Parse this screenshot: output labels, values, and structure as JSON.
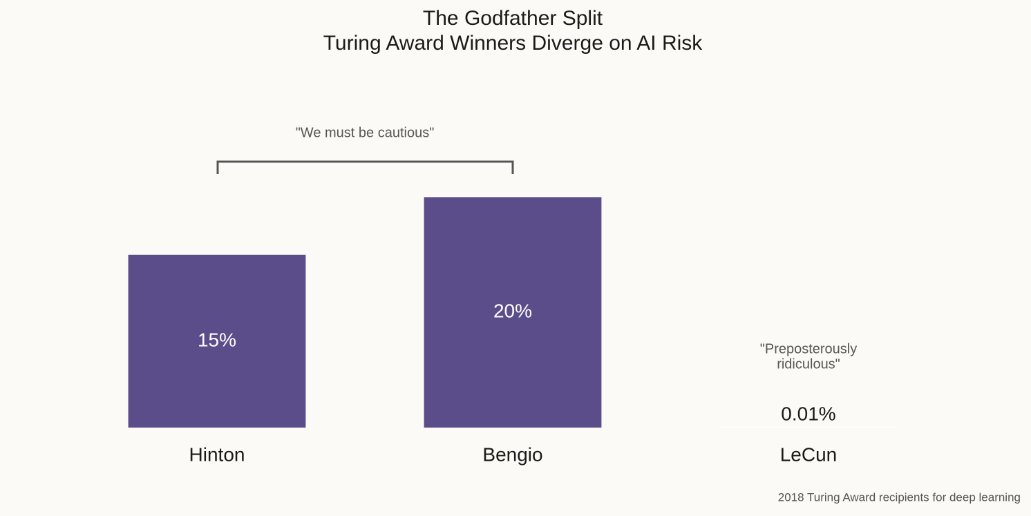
{
  "chart_data": {
    "type": "bar",
    "title": [
      "The Godfather Split",
      "Turing Award Winners Diverge on AI Risk"
    ],
    "categories": [
      "Hinton",
      "Bengio",
      "LeCun"
    ],
    "values": [
      15,
      20,
      0.01
    ],
    "value_labels": [
      "15%",
      "20%",
      "0.01%"
    ],
    "colors": [
      "#5b4c8a",
      "#5b4c8a",
      "#ffffff"
    ],
    "ylim": [
      0,
      25
    ],
    "annotations": {
      "bracket": "\"We must be cautious\"",
      "lecun": [
        "\"Preposterously",
        "ridiculous\""
      ]
    },
    "source": "2018 Turing Award recipients for deep learning"
  }
}
